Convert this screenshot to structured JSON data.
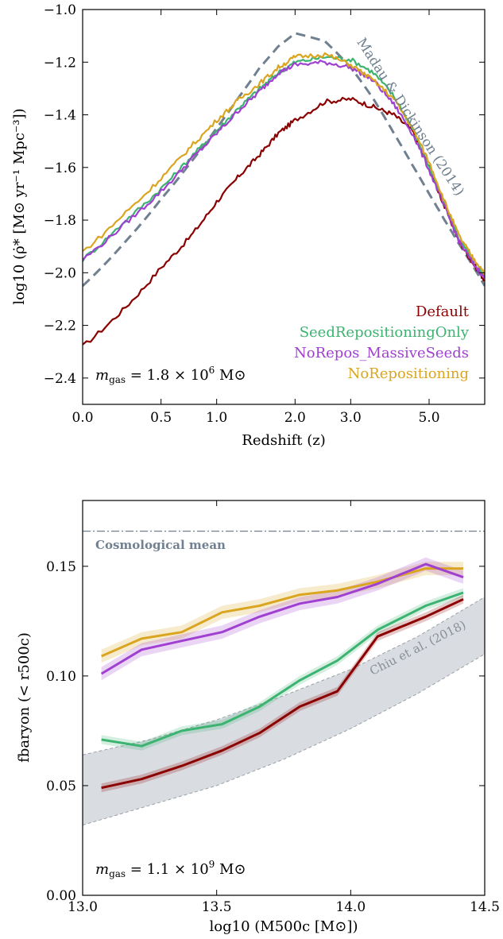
{
  "chart_data": [
    {
      "type": "line",
      "xlabel": "Redshift (z)",
      "ylabel": "log10 (ρ̇* [M⊙ yr⁻¹ Mpc⁻³])",
      "x_tick_labels": [
        "0.0",
        "0.5",
        "1.0",
        "2.0",
        "3.0",
        "5.0"
      ],
      "x_ticks": [
        0,
        0.5,
        1,
        2,
        3,
        5
      ],
      "y_tick_labels": [
        "−1.0",
        "−1.2",
        "−1.4",
        "−1.6",
        "−1.8",
        "−2.0",
        "−2.2",
        "−2.4"
      ],
      "y_ticks": [
        -1.0,
        -1.2,
        -1.4,
        -1.6,
        -1.8,
        -2.0,
        -2.2,
        -2.4
      ],
      "xlim": [
        0,
        7
      ],
      "ylim": [
        -2.5,
        -1.0
      ],
      "grid": false,
      "legend_position": "bottom-right",
      "annotation": "m_gas = 1.8 × 10^6 M⊙",
      "annotation_parts": {
        "var": "m",
        "sub": "gas",
        "eq": " = 1.8 × 10",
        "exp": "6",
        "unit": " M⊙"
      },
      "reference": {
        "name": "Madau & Dickinson (2014)",
        "color": "#708090",
        "x": [
          0,
          0.25,
          0.5,
          0.75,
          1.0,
          1.25,
          1.5,
          1.75,
          2.0,
          2.5,
          3.0,
          3.5,
          4.0,
          4.5,
          5.0,
          5.5,
          6.0,
          6.5,
          7.0
        ],
        "values": [
          -2.05,
          -1.88,
          -1.72,
          -1.58,
          -1.45,
          -1.33,
          -1.22,
          -1.14,
          -1.09,
          -1.12,
          -1.22,
          -1.34,
          -1.47,
          -1.59,
          -1.7,
          -1.8,
          -1.89,
          -1.97,
          -2.05
        ]
      },
      "series": [
        {
          "name": "Default",
          "color": "#8b0000",
          "x": [
            0,
            0.25,
            0.5,
            0.75,
            1.0,
            1.25,
            1.5,
            1.75,
            2.0,
            2.5,
            3.0,
            3.5,
            4.0,
            4.5,
            5.0,
            5.5,
            6.0,
            6.5,
            7.0
          ],
          "values": [
            -2.28,
            -2.13,
            -1.98,
            -1.86,
            -1.73,
            -1.63,
            -1.55,
            -1.47,
            -1.42,
            -1.35,
            -1.34,
            -1.37,
            -1.4,
            -1.46,
            -1.6,
            -1.75,
            -1.88,
            -1.96,
            -2.03
          ]
        },
        {
          "name": "SeedRepositioningOnly",
          "color": "#3cb371",
          "x": [
            0,
            0.25,
            0.5,
            0.75,
            1.0,
            1.25,
            1.5,
            1.75,
            2.0,
            2.5,
            3.0,
            3.5,
            4.0,
            4.5,
            5.0,
            5.5,
            6.0,
            6.5,
            7.0
          ],
          "values": [
            -1.95,
            -1.8,
            -1.68,
            -1.56,
            -1.46,
            -1.37,
            -1.3,
            -1.24,
            -1.2,
            -1.18,
            -1.19,
            -1.24,
            -1.33,
            -1.45,
            -1.6,
            -1.74,
            -1.87,
            -1.95,
            -2.01
          ]
        },
        {
          "name": "NoRepos_MassiveSeeds",
          "color": "#a040d0",
          "x": [
            0,
            0.25,
            0.5,
            0.75,
            1.0,
            1.25,
            1.5,
            1.75,
            2.0,
            2.5,
            3.0,
            3.5,
            4.0,
            4.5,
            5.0,
            5.5,
            6.0,
            6.5,
            7.0
          ],
          "values": [
            -1.95,
            -1.81,
            -1.69,
            -1.57,
            -1.47,
            -1.38,
            -1.31,
            -1.24,
            -1.21,
            -1.2,
            -1.22,
            -1.27,
            -1.36,
            -1.47,
            -1.61,
            -1.75,
            -1.88,
            -1.96,
            -2.02
          ]
        },
        {
          "name": "NoRepositioning",
          "color": "#daa520",
          "x": [
            0,
            0.25,
            0.5,
            0.75,
            1.0,
            1.25,
            1.5,
            1.75,
            2.0,
            2.5,
            3.0,
            3.5,
            4.0,
            4.5,
            5.0,
            5.5,
            6.0,
            6.5,
            7.0
          ],
          "values": [
            -1.92,
            -1.77,
            -1.64,
            -1.52,
            -1.42,
            -1.34,
            -1.28,
            -1.22,
            -1.18,
            -1.17,
            -1.21,
            -1.27,
            -1.34,
            -1.45,
            -1.58,
            -1.73,
            -1.86,
            -1.94,
            -2.0
          ]
        }
      ]
    },
    {
      "type": "line",
      "xlabel": "log10 (M500c [M⊙])",
      "ylabel": "fbaryon (< r500c)",
      "x_tick_labels": [
        "13.0",
        "13.5",
        "14.0",
        "14.5"
      ],
      "x_ticks": [
        13.0,
        13.5,
        14.0,
        14.5
      ],
      "y_tick_labels": [
        "0.00",
        "0.05",
        "0.10",
        "0.15"
      ],
      "y_ticks": [
        0.0,
        0.05,
        0.1,
        0.15
      ],
      "xlim": [
        13.0,
        14.5
      ],
      "ylim": [
        0.0,
        0.18
      ],
      "grid": false,
      "annotation": "m_gas = 1.1 × 10^9 M⊙",
      "annotation_parts": {
        "var": "m",
        "sub": "gas",
        "eq": " = 1.1 × 10",
        "exp": "9",
        "unit": " M⊙"
      },
      "cosmic_mean": {
        "label": "Cosmological mean",
        "value": 0.166,
        "color": "#708090"
      },
      "band": {
        "name": "Chiu et al. (2018)",
        "color": "#d9dde2",
        "x": [
          13.0,
          13.25,
          13.5,
          13.75,
          14.0,
          14.25,
          14.5
        ],
        "lower": [
          0.032,
          0.041,
          0.05,
          0.062,
          0.076,
          0.092,
          0.11
        ],
        "upper": [
          0.064,
          0.071,
          0.08,
          0.091,
          0.103,
          0.118,
          0.136
        ]
      },
      "series": [
        {
          "name": "NoRepositioning",
          "color": "#daa520",
          "x": [
            13.07,
            13.22,
            13.37,
            13.52,
            13.66,
            13.81,
            13.95,
            14.1,
            14.28,
            14.42
          ],
          "values": [
            0.109,
            0.117,
            0.12,
            0.129,
            0.132,
            0.137,
            0.139,
            0.143,
            0.149,
            0.149
          ],
          "spread": 0.003
        },
        {
          "name": "NoRepos_MassiveSeeds",
          "color": "#a040d0",
          "x": [
            13.07,
            13.22,
            13.37,
            13.52,
            13.66,
            13.81,
            13.95,
            14.1,
            14.28,
            14.42
          ],
          "values": [
            0.101,
            0.112,
            0.116,
            0.12,
            0.127,
            0.133,
            0.136,
            0.142,
            0.151,
            0.145
          ],
          "spread": 0.003
        },
        {
          "name": "SeedRepositioningOnly",
          "color": "#3cb371",
          "x": [
            13.07,
            13.22,
            13.37,
            13.52,
            13.66,
            13.81,
            13.95,
            14.1,
            14.28,
            14.42
          ],
          "values": [
            0.071,
            0.068,
            0.075,
            0.078,
            0.086,
            0.098,
            0.107,
            0.121,
            0.132,
            0.138
          ],
          "spread": 0.002
        },
        {
          "name": "Default",
          "color": "#8b0000",
          "x": [
            13.07,
            13.22,
            13.37,
            13.52,
            13.66,
            13.81,
            13.95,
            14.1,
            14.28,
            14.42
          ],
          "values": [
            0.049,
            0.053,
            0.059,
            0.066,
            0.074,
            0.086,
            0.093,
            0.118,
            0.127,
            0.135
          ],
          "spread": 0.002
        }
      ]
    }
  ]
}
